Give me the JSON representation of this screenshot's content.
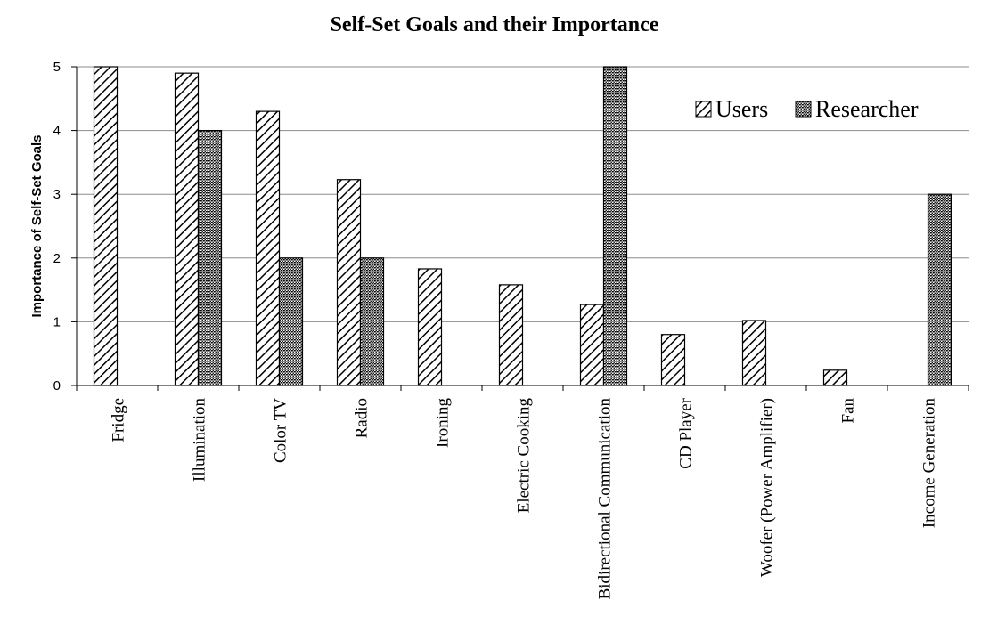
{
  "chart_data": {
    "type": "bar",
    "title": "Self-Set Goals and their Importance",
    "xlabel": "",
    "ylabel": "Importance of Self-Set Goals",
    "ylim": [
      0,
      5
    ],
    "yticks": [
      "0",
      "1",
      "2",
      "3",
      "4",
      "5"
    ],
    "grid": "horizontal",
    "legend_position": "top-right",
    "categories": [
      "Fridge",
      "Illumination",
      "Color TV",
      "Radio",
      "Ironing",
      "Electric Cooking",
      "Bidirectional Communication",
      "CD Player",
      "Woofer (Power Amplifier)",
      "Fan",
      "Income Generation"
    ],
    "series": [
      {
        "name": "Users",
        "pattern": "diagonal-hatch",
        "values": [
          5,
          4.9,
          4.3,
          3.23,
          1.83,
          1.58,
          1.27,
          0.8,
          1.02,
          0.24,
          0
        ]
      },
      {
        "name": "Researcher",
        "pattern": "dotted-fill",
        "values": [
          0,
          4,
          2,
          2,
          0,
          0,
          5,
          0,
          0,
          0,
          3
        ]
      }
    ],
    "colors": {
      "axis": "#000000",
      "grid": "#8c8c8c",
      "bar_outline": "#000000",
      "background": "#ffffff"
    }
  }
}
